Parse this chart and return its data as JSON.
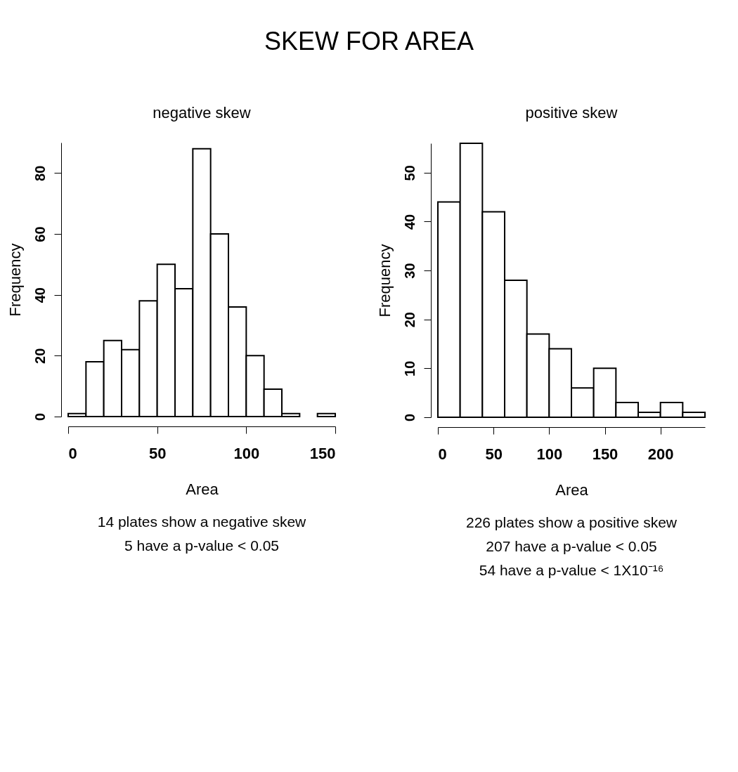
{
  "chart_data": [
    {
      "type": "histogram",
      "title": "SKEW FOR AREA",
      "subtitle": "negative skew",
      "xlabel": "Area",
      "ylabel": "Frequency",
      "bins": [
        0,
        10,
        20,
        30,
        40,
        50,
        60,
        70,
        80,
        90,
        100,
        110,
        120,
        130,
        140,
        150
      ],
      "values": [
        1,
        18,
        25,
        22,
        38,
        50,
        42,
        88,
        60,
        36,
        20,
        9,
        1,
        0,
        1
      ],
      "color": "#ffffff",
      "xlim": [
        0,
        150
      ],
      "xticks": [
        0,
        50,
        100,
        150
      ],
      "ylim": [
        0,
        90
      ],
      "yticks": [
        0,
        20,
        40,
        60,
        80
      ],
      "grid": false,
      "annotations": [
        "14 plates show a negative skew",
        "5 have a p-value < 0.05"
      ]
    },
    {
      "type": "histogram",
      "subtitle": "positive skew",
      "xlabel": "Area",
      "ylabel": "Frequency",
      "bins": [
        0,
        20,
        40,
        60,
        80,
        100,
        120,
        140,
        160,
        180,
        200,
        220,
        240
      ],
      "values": [
        44,
        56,
        42,
        28,
        17,
        14,
        6,
        10,
        3,
        1,
        3,
        1
      ],
      "color": "#ffffff",
      "xlim": [
        0,
        240
      ],
      "xticks": [
        0,
        50,
        100,
        150,
        200
      ],
      "ylim": [
        0,
        56
      ],
      "yticks": [
        0,
        10,
        20,
        30,
        40,
        50
      ],
      "grid": false,
      "annotations": [
        "226 plates show a positive skew",
        "207 have a p-value < 0.05",
        "54 have a p-value < 1X10⁻¹⁶"
      ]
    }
  ]
}
